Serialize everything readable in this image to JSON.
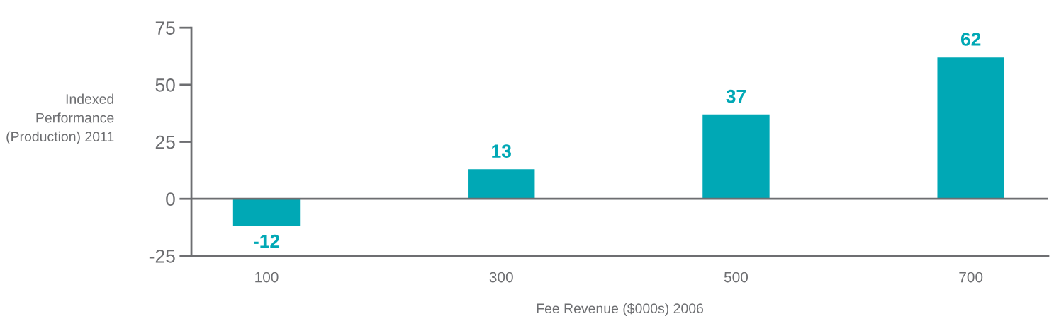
{
  "chart_data": {
    "type": "bar",
    "xlabel": "Fee Revenue ($000s) 2006",
    "ylabel": "Indexed\nPerformance\n(Production) 2011",
    "categories": [
      "100",
      "300",
      "500",
      "700"
    ],
    "values": [
      -12,
      13,
      37,
      62
    ],
    "data_labels": true,
    "color": "#00a8b5",
    "ylim": [
      -25,
      75
    ],
    "yticks": [
      -25,
      0,
      25,
      50,
      75
    ],
    "ref_lines": [
      {
        "axis": "y",
        "value": 0,
        "color": "#6d6e71"
      }
    ],
    "grid": false,
    "legend": false
  }
}
